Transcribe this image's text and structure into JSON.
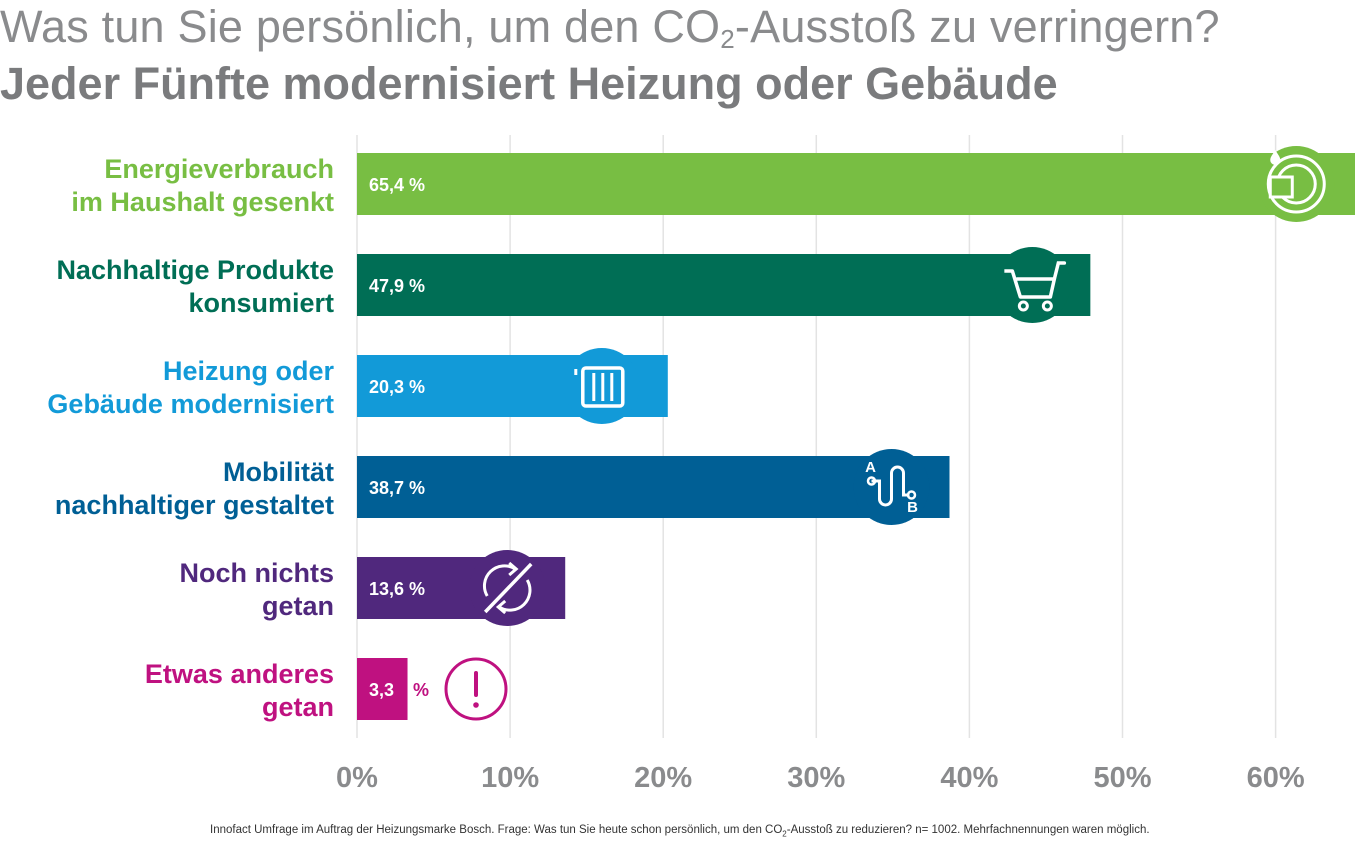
{
  "title": {
    "line1_pre": "Was tun Sie persönlich, um den CO",
    "line1_sub": "2",
    "line1_post": "-Ausstoß zu verringern?",
    "line2": "Jeder Fünfte modernisiert Heizung oder Gebäude"
  },
  "footnote": {
    "pre": "Innofact Umfrage im Auftrag der Heizungsmarke Bosch. Frage:  Was tun Sie heute schon persönlich, um den CO",
    "sub": "2",
    "post": "-Ausstoß zu reduzieren? n= 1002. Mehrfachnennungen waren möglich."
  },
  "chart_data": {
    "type": "bar",
    "orientation": "horizontal",
    "xlim": [
      0,
      65
    ],
    "grid": true,
    "ticks": [
      {
        "value": 0,
        "label": "0%"
      },
      {
        "value": 10,
        "label": "10%"
      },
      {
        "value": 20,
        "label": "20%"
      },
      {
        "value": 30,
        "label": "30%"
      },
      {
        "value": 40,
        "label": "40%"
      },
      {
        "value": 50,
        "label": "50%"
      },
      {
        "value": 60,
        "label": "60%"
      }
    ],
    "bars": [
      {
        "label": [
          "Energieverbrauch",
          "im Haushalt gesenkt"
        ],
        "value": 65.4,
        "value_label": "65,4 %",
        "color": "#78be43",
        "icon": "dishwasher-icon"
      },
      {
        "label": [
          "Nachhaltige Produkte",
          "konsumiert"
        ],
        "value": 47.9,
        "value_label": "47,9 %",
        "color": "#006e55",
        "icon": "shopping-cart-icon"
      },
      {
        "label": [
          "Heizung oder",
          "Gebäude modernisiert"
        ],
        "value": 20.3,
        "value_label": "20,3 %",
        "color": "#129ad8",
        "icon": "radiator-icon"
      },
      {
        "label": [
          "Mobilität",
          "nachhaltiger gestaltet"
        ],
        "value": 38.7,
        "value_label": "38,7 %",
        "color": "#005f95",
        "icon": "route-a-to-b-icon"
      },
      {
        "label": [
          "Noch nichts",
          "getan"
        ],
        "value": 13.6,
        "value_label": "13,6 %",
        "color": "#50287d",
        "icon": "no-cycle-icon"
      },
      {
        "label": [
          "Etwas anderes",
          "getan"
        ],
        "value": 3.3,
        "value_label_num": "3,3",
        "value_label_unit": "%",
        "color": "#bf1180",
        "icon": "exclamation-icon"
      }
    ]
  }
}
